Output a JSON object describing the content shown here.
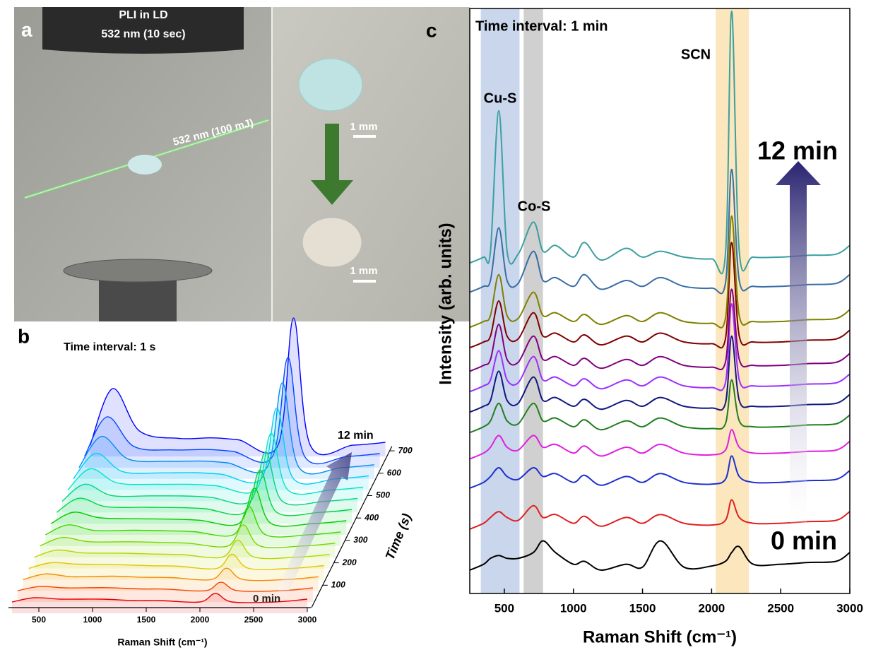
{
  "panel_a": {
    "label": "a",
    "title_lines": [
      "PLI in LD",
      "532 nm (10 sec)"
    ],
    "beam_label": "532 nm (100 mJ)",
    "scale_bars": [
      "1 mm",
      "1 mm"
    ]
  },
  "chart_data": [
    {
      "type": "waterfall",
      "panel_label": "b",
      "title": "Time interval: 1 s",
      "x_label": "Raman Shift (cm⁻¹)",
      "z_label": "Time (s)",
      "annotations": {
        "start": "0 min",
        "end": "12 min"
      },
      "x": [
        250,
        460,
        710,
        1080,
        1380,
        1630,
        2000,
        2145,
        2300,
        2700,
        3000
      ],
      "xlim": [
        250,
        3000
      ],
      "xticks": [
        500,
        1000,
        1500,
        2000,
        2500,
        3000
      ],
      "zlim": [
        0,
        720
      ],
      "zticks": [
        100,
        200,
        300,
        400,
        500,
        600,
        700
      ],
      "series": [
        {
          "time": 0,
          "color": "hsl(0,100%,45%)",
          "values": [
            2,
            5,
            4,
            4,
            3,
            3,
            2,
            8,
            2,
            2,
            4
          ]
        },
        {
          "time": 50,
          "color": "hsl(17,100%,48%)",
          "values": [
            2,
            5,
            4,
            4.2,
            3.3,
            3.2,
            2,
            8,
            2,
            2,
            4
          ]
        },
        {
          "time": 100,
          "color": "hsl(34,100%,48%)",
          "values": [
            2,
            6,
            4,
            4.4,
            3.6,
            3.4,
            2,
            10,
            2,
            2,
            4
          ]
        },
        {
          "time": 150,
          "color": "hsl(51,100%,45%)",
          "values": [
            2,
            6,
            5,
            4.6,
            3.9,
            3.6,
            2,
            12,
            2,
            2,
            4
          ]
        },
        {
          "time": 200,
          "color": "hsl(69,100%,42%)",
          "values": [
            2,
            7,
            5,
            4.8,
            4.2,
            3.8,
            2,
            14,
            2,
            2,
            4
          ]
        },
        {
          "time": 250,
          "color": "hsl(86,100%,42%)",
          "values": [
            2,
            8,
            5,
            5,
            4.5,
            4,
            2,
            17,
            2,
            2,
            4
          ]
        },
        {
          "time": 300,
          "color": "hsl(103,100%,42%)",
          "values": [
            2,
            9,
            5,
            5.2,
            4.8,
            4.2,
            2,
            22,
            2,
            2,
            4
          ]
        },
        {
          "time": 350,
          "color": "hsl(120,100%,40%)",
          "values": [
            2,
            10,
            6,
            5.4,
            5.1,
            4.4,
            2,
            27,
            2,
            2,
            4
          ]
        },
        {
          "time": 400,
          "color": "hsl(137,100%,42%)",
          "values": [
            2,
            12,
            6,
            5.6,
            5.4,
            4.6,
            2,
            32,
            2,
            2,
            4
          ]
        },
        {
          "time": 450,
          "color": "hsl(154,100%,42%)",
          "values": [
            2,
            14,
            6,
            5.8,
            5.7,
            4.8,
            2,
            37,
            2,
            2,
            4
          ]
        },
        {
          "time": 500,
          "color": "hsl(171,100%,45%)",
          "values": [
            2,
            17,
            7,
            6,
            6,
            5,
            2,
            42,
            2,
            2,
            4
          ]
        },
        {
          "time": 550,
          "color": "hsl(189,100%,48%)",
          "values": [
            2,
            20,
            7,
            6.2,
            6.3,
            5.2,
            2,
            52,
            2,
            2,
            4
          ]
        },
        {
          "time": 600,
          "color": "hsl(206,100%,48%)",
          "values": [
            2,
            24,
            8,
            6.4,
            6.6,
            5.4,
            2,
            62,
            2,
            2,
            4
          ]
        },
        {
          "time": 650,
          "color": "hsl(223,100%,50%)",
          "values": [
            2,
            30,
            9,
            6.6,
            6.9,
            5.6,
            2,
            72,
            2,
            2,
            4
          ]
        },
        {
          "time": 700,
          "color": "hsl(240,100%,50%)",
          "values": [
            2,
            42,
            12,
            6.8,
            7.2,
            5.8,
            2,
            92,
            2,
            2,
            4
          ]
        }
      ]
    },
    {
      "type": "line",
      "panel_label": "c",
      "title": "Time interval: 1 min",
      "x_label": "Raman Shift (cm⁻¹)",
      "y_label": "Intensity (arb. units)",
      "annotations": {
        "start": "0 min",
        "end": "12 min"
      },
      "bands": [
        {
          "label": "Cu-S",
          "range": [
            330,
            610
          ],
          "color": "#c9d6ec"
        },
        {
          "label": "Co-S",
          "range": [
            640,
            780
          ],
          "color": "#d0d0d0"
        },
        {
          "label": "SCN",
          "range": [
            2030,
            2270
          ],
          "color": "#fbe6bd"
        }
      ],
      "x": [
        250,
        350,
        400,
        460,
        520,
        600,
        710,
        780,
        870,
        1000,
        1080,
        1200,
        1380,
        1500,
        1630,
        1800,
        2000,
        2100,
        2145,
        2200,
        2300,
        2500,
        2700,
        2900,
        3000
      ],
      "xlim": [
        250,
        3000
      ],
      "xticks": [
        500,
        1000,
        1500,
        2000,
        2500,
        3000
      ],
      "ylim": [
        0,
        100
      ],
      "series": [
        {
          "color": "#000000",
          "values": [
            4,
            5,
            6,
            6.5,
            6,
            6,
            7,
            9,
            7,
            5,
            5.5,
            4,
            5,
            4.5,
            9,
            4.5,
            4.7,
            5.5,
            7,
            8,
            5,
            5,
            5.3,
            5.5,
            7
          ]
        },
        {
          "color": "#e02020",
          "values": [
            11,
            12,
            13,
            14,
            13,
            12.5,
            15,
            13,
            13.5,
            12,
            13.2,
            11.5,
            13,
            12,
            13.5,
            12,
            11.7,
            12.5,
            16,
            13,
            12,
            12,
            12.3,
            12.5,
            14
          ]
        },
        {
          "color": "#2030d0",
          "values": [
            18,
            19,
            20,
            21.5,
            20,
            19.5,
            21.5,
            20,
            20.5,
            19,
            20.2,
            18.5,
            20,
            19,
            20.5,
            19,
            18.7,
            19.5,
            23.5,
            20,
            19,
            19,
            19.3,
            19.5,
            21
          ]
        },
        {
          "color": "#e020e0",
          "values": [
            23,
            24,
            25,
            27,
            25,
            24.5,
            27,
            25,
            25.5,
            24,
            25.2,
            23.5,
            25,
            24,
            25.5,
            24,
            23.7,
            24.5,
            28,
            25,
            24,
            24,
            24.3,
            24.5,
            26
          ]
        },
        {
          "color": "#208020",
          "values": [
            27.5,
            28.5,
            29.5,
            32.5,
            29.5,
            29,
            32.5,
            29.5,
            30,
            28.5,
            29.7,
            28,
            29.5,
            28.5,
            30,
            28.5,
            28.2,
            29,
            36.5,
            29.5,
            28.5,
            28.5,
            28.8,
            29,
            30.5
          ]
        },
        {
          "color": "#101880",
          "values": [
            31,
            32,
            33,
            38,
            33,
            32.5,
            37,
            33,
            33.5,
            32,
            33.2,
            31.5,
            33,
            32,
            33.5,
            32,
            31.7,
            32.5,
            44,
            33,
            32,
            32,
            32.3,
            32.5,
            34
          ]
        },
        {
          "color": "#9b30ff",
          "values": [
            34.5,
            35.5,
            36.5,
            41.5,
            36.5,
            36,
            40.5,
            36.5,
            37,
            35.5,
            36.7,
            35,
            36.5,
            35.5,
            37,
            35.5,
            35.2,
            36,
            49.5,
            36.5,
            35.5,
            35.5,
            35.8,
            36,
            37.5
          ]
        },
        {
          "color": "#800080",
          "values": [
            38,
            39,
            40,
            46,
            40,
            39.5,
            44,
            40,
            40.5,
            39,
            40.2,
            38.5,
            40,
            39,
            40.5,
            39,
            38.7,
            39.5,
            52,
            40,
            39,
            39,
            39.3,
            39.5,
            41
          ]
        },
        {
          "color": "#800000",
          "values": [
            42,
            43,
            44,
            50,
            44,
            43.5,
            48,
            44,
            44.5,
            43,
            44.2,
            42.5,
            44,
            43,
            44.5,
            43,
            42.7,
            43.5,
            60,
            44,
            43,
            43,
            43.3,
            43.5,
            45
          ]
        },
        {
          "color": "#808000",
          "values": [
            45.5,
            46.5,
            47.5,
            54.5,
            47.5,
            47,
            51.5,
            47.5,
            48,
            46.5,
            47.7,
            46,
            47.5,
            46.5,
            48,
            46.5,
            46.2,
            47,
            64.5,
            47.5,
            46.5,
            46.5,
            46.8,
            47,
            48.5
          ]
        },
        {
          "color": "#3a6ea5",
          "values": [
            51.5,
            52.5,
            53.5,
            62.5,
            53.5,
            53,
            58.5,
            53.5,
            54,
            52.5,
            54.5,
            52,
            53.5,
            52.5,
            54,
            52.5,
            52.2,
            53,
            72.5,
            53.5,
            52.5,
            52.5,
            52.8,
            53,
            54.5
          ]
        },
        {
          "color": "#3aa0a0",
          "values": [
            56.5,
            57.5,
            58.5,
            82.5,
            58.5,
            58,
            63.5,
            58.5,
            59.5,
            57.5,
            60,
            57,
            59,
            57.5,
            58.5,
            57.5,
            57.2,
            58,
            99.5,
            58.5,
            57.5,
            57.5,
            57.8,
            58,
            59.5
          ]
        }
      ]
    }
  ]
}
